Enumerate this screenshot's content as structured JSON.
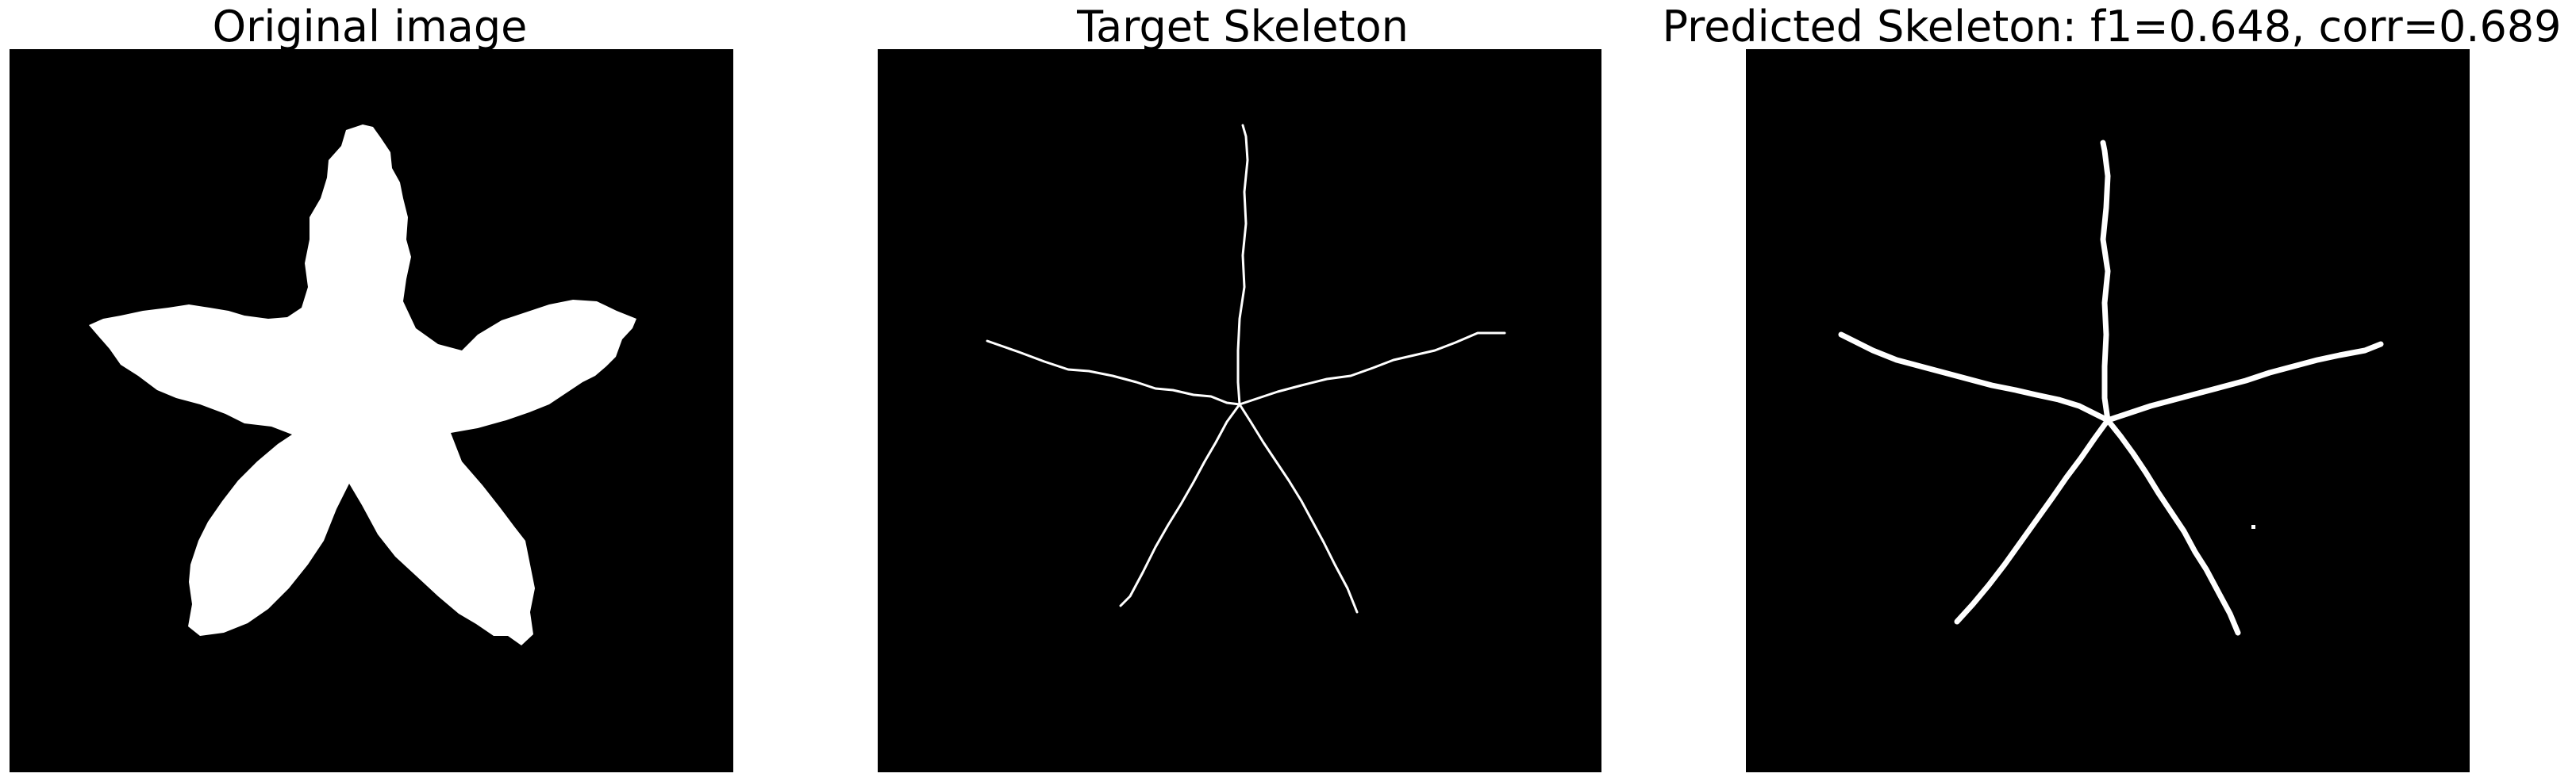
{
  "panels": [
    {
      "title": "Original image"
    },
    {
      "title": "Target Skeleton"
    },
    {
      "title": "Predicted Skeleton: f1=0.648, corr=0.689"
    }
  ],
  "colors": {
    "background": "#000000",
    "foreground": "#ffffff"
  }
}
